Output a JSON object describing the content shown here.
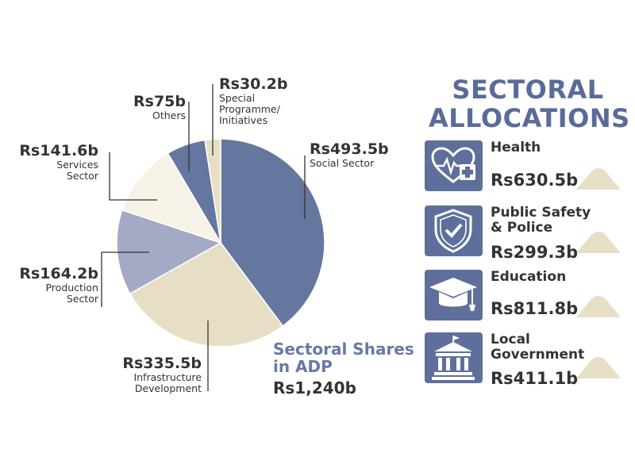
{
  "chart_data": {
    "type": "pie",
    "title": [
      "Sectoral Shares",
      "in ADP"
    ],
    "total": "Rs1,240b",
    "slices": [
      {
        "value": 493.5,
        "value_label": "Rs493.5b",
        "label": [
          "Social Sector"
        ],
        "color": "#65769f"
      },
      {
        "value": 335.5,
        "value_label": "Rs335.5b",
        "label": [
          "Infrastructure",
          "Development"
        ],
        "color": "#e6dfc6"
      },
      {
        "value": 164.2,
        "value_label": "Rs164.2b",
        "label": [
          "Production",
          "Sector"
        ],
        "color": "#a4a9c5"
      },
      {
        "value": 141.6,
        "value_label": "Rs141.6b",
        "label": [
          "Services",
          "Sector"
        ],
        "color": "#f6f2e7"
      },
      {
        "value": 75,
        "value_label": "Rs75b",
        "label": [
          "Others"
        ],
        "color": "#65769f"
      },
      {
        "value": 30.2,
        "value_label": "Rs30.2b",
        "label": [
          "Special",
          "Programme/",
          "Initiatives"
        ],
        "color": "#e6dfc6"
      }
    ]
  },
  "allocations": {
    "title": [
      "SECTORAL",
      "ALLOCATIONS"
    ],
    "items": [
      {
        "label": [
          "Health"
        ],
        "value": "Rs630.5b",
        "icon": "heart-health-icon"
      },
      {
        "label": [
          "Public Safety",
          "& Police"
        ],
        "value": "Rs299.3b",
        "icon": "shield-check-icon"
      },
      {
        "label": [
          "Education"
        ],
        "value": "Rs811.8b",
        "icon": "graduation-cap-icon"
      },
      {
        "label": [
          "Local",
          "Government"
        ],
        "value": "Rs411.1b",
        "icon": "government-building-icon"
      }
    ],
    "accent_color": "#5f6f9c",
    "mound_color": "#e6dfc6"
  }
}
